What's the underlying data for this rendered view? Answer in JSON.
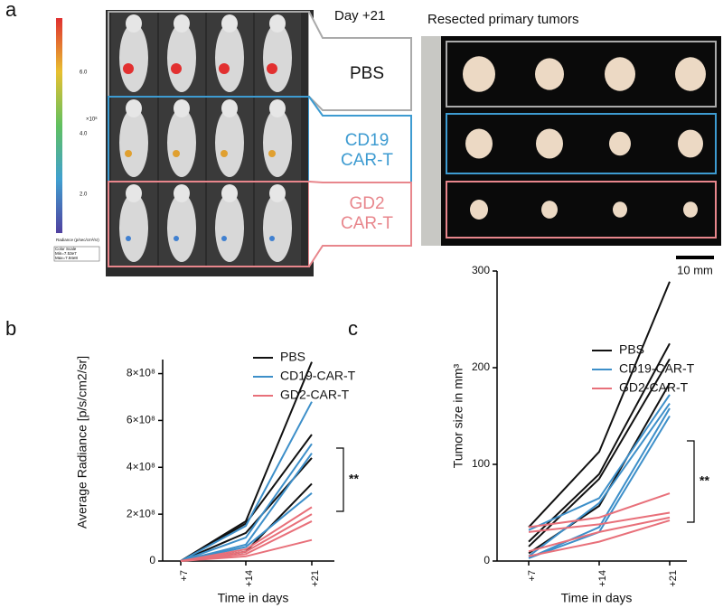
{
  "panel_a": {
    "label": "a",
    "day": "Day +21",
    "resected": "Resected primary tumors",
    "groups": [
      "PBS",
      "CD19\nCAR-T",
      "GD2\nCAR-T"
    ],
    "scale_bar": "10 mm",
    "colorbar": {
      "ticks": [
        "6.0",
        "4.0",
        "2.0"
      ],
      "exponent": "×10⁸",
      "unit": "Radiance (p/sec/cm²/sr)",
      "scale": "Color Scale Min=7.53e7 Max=7.94e8"
    }
  },
  "chart_data": [
    {
      "type": "line",
      "panel": "b",
      "xlabel": "Time in days",
      "ylabel": "Average Radiance [p/s/cm2/sr]",
      "categories": [
        "+7",
        "+14",
        "+21"
      ],
      "ylim": [
        0,
        860000000
      ],
      "yticks": [
        0,
        {
          "value": 200000000,
          "label": "2×10⁸"
        },
        {
          "value": 400000000,
          "label": "4×10⁸"
        },
        {
          "value": 600000000,
          "label": "6×10⁸"
        },
        {
          "value": 800000000,
          "label": "8×10⁸"
        }
      ],
      "annotation": "**",
      "series": [
        {
          "name": "PBS",
          "color": "#111111",
          "lines": [
            [
              0,
              170000000,
              850000000
            ],
            [
              0,
              160000000,
              540000000
            ],
            [
              0,
              120000000,
              440000000
            ],
            [
              0,
              40000000,
              330000000
            ]
          ]
        },
        {
          "name": "CD19-CAR-T",
          "color": "#3d8fc9",
          "lines": [
            [
              0,
              150000000,
              680000000
            ],
            [
              0,
              100000000,
              500000000
            ],
            [
              0,
              70000000,
              460000000
            ],
            [
              0,
              60000000,
              290000000
            ]
          ]
        },
        {
          "name": "GD2-CAR-T",
          "color": "#e8707a",
          "lines": [
            [
              0,
              50000000,
              230000000
            ],
            [
              0,
              40000000,
              200000000
            ],
            [
              0,
              30000000,
              170000000
            ],
            [
              0,
              20000000,
              90000000
            ]
          ]
        }
      ]
    },
    {
      "type": "line",
      "panel": "c",
      "xlabel": "Time in days",
      "ylabel": "Tumor size in mm³",
      "categories": [
        "+7",
        "+14",
        "+21"
      ],
      "ylim": [
        0,
        300
      ],
      "yticks": [
        0,
        100,
        200,
        300
      ],
      "annotation": "**",
      "series": [
        {
          "name": "PBS",
          "color": "#111111",
          "lines": [
            [
              35,
              113,
              289
            ],
            [
              20,
              90,
              225
            ],
            [
              15,
              85,
              209
            ],
            [
              8,
              57,
              184
            ]
          ]
        },
        {
          "name": "CD19-CAR-T",
          "color": "#3d8fc9",
          "lines": [
            [
              32,
              65,
              172
            ],
            [
              5,
              60,
              163
            ],
            [
              3,
              35,
              158
            ],
            [
              3,
              30,
              150
            ]
          ]
        },
        {
          "name": "GD2-CAR-T",
          "color": "#e8707a",
          "lines": [
            [
              35,
              45,
              70
            ],
            [
              30,
              38,
              50
            ],
            [
              10,
              30,
              45
            ],
            [
              5,
              20,
              42
            ]
          ]
        }
      ]
    }
  ]
}
